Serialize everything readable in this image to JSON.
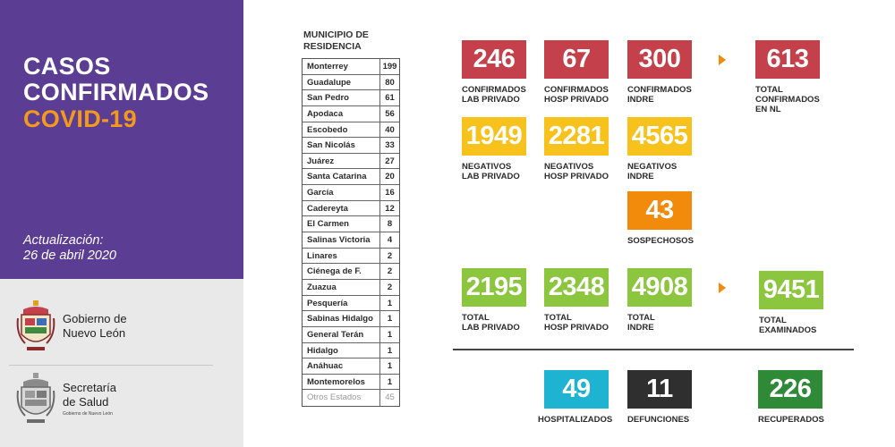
{
  "header": {
    "title_line1": "CASOS",
    "title_line2": "CONFIRMADOS",
    "title_line3": "COVID-19",
    "update_label": "Actualización:",
    "update_date": "26 de abril 2020"
  },
  "logos": {
    "gov_line1": "Gobierno de",
    "gov_line2": "Nuevo León",
    "salud_line1": "Secretaría",
    "salud_line2": "de Salud",
    "salud_sub": "Gobierno de Nuevo León"
  },
  "municipios": {
    "header_line1": "MUNICIPIO DE",
    "header_line2": "RESIDENCIA",
    "rows": [
      {
        "name": "Monterrey",
        "count": "199"
      },
      {
        "name": "Guadalupe",
        "count": "80"
      },
      {
        "name": "San Pedro",
        "count": "61"
      },
      {
        "name": "Apodaca",
        "count": "56"
      },
      {
        "name": "Escobedo",
        "count": "40"
      },
      {
        "name": "San Nicolás",
        "count": "33"
      },
      {
        "name": "Juárez",
        "count": "27"
      },
      {
        "name": "Santa Catarina",
        "count": "20"
      },
      {
        "name": "García",
        "count": "16"
      },
      {
        "name": "Cadereyta",
        "count": "12"
      },
      {
        "name": "El Carmen",
        "count": "8"
      },
      {
        "name": "Salinas Victoria",
        "count": "4"
      },
      {
        "name": "Linares",
        "count": "2"
      },
      {
        "name": "Ciénega de F.",
        "count": "2"
      },
      {
        "name": "Zuazua",
        "count": "2"
      },
      {
        "name": "Pesquería",
        "count": "1"
      },
      {
        "name": "Sabinas Hidalgo",
        "count": "1"
      },
      {
        "name": "General Terán",
        "count": "1"
      },
      {
        "name": "Hidalgo",
        "count": "1"
      },
      {
        "name": "Anáhuac",
        "count": "1"
      },
      {
        "name": "Montemorelos",
        "count": "1"
      },
      {
        "name": "Otros Estados",
        "count": "45"
      }
    ]
  },
  "stats": {
    "conf_lab": {
      "value": "246",
      "label1": "CONFIRMADOS",
      "label2": "LAB PRIVADO"
    },
    "conf_hosp": {
      "value": "67",
      "label1": "CONFIRMADOS",
      "label2": "HOSP PRIVADO"
    },
    "conf_indre": {
      "value": "300",
      "label1": "CONFIRMADOS",
      "label2": "INDRE"
    },
    "conf_total": {
      "value": "613",
      "label1": "TOTAL",
      "label2": "CONFIRMADOS",
      "label3": "EN NL"
    },
    "neg_lab": {
      "value": "1949",
      "label1": "NEGATIVOS",
      "label2": "LAB PRIVADO"
    },
    "neg_hosp": {
      "value": "2281",
      "label1": "NEGATIVOS",
      "label2": "HOSP PRIVADO"
    },
    "neg_indre": {
      "value": "4565",
      "label1": "NEGATIVOS",
      "label2": "INDRE"
    },
    "sospechosos": {
      "value": "43",
      "label1": "SOSPECHOSOS"
    },
    "tot_lab": {
      "value": "2195",
      "label1": "TOTAL",
      "label2": "LAB PRIVADO"
    },
    "tot_hosp": {
      "value": "2348",
      "label1": "TOTAL",
      "label2": "HOSP PRIVADO"
    },
    "tot_indre": {
      "value": "4908",
      "label1": "TOTAL",
      "label2": "INDRE"
    },
    "tot_examinados": {
      "value": "9451",
      "label1": "TOTAL",
      "label2": "EXAMINADOS"
    },
    "hospitalizados": {
      "value": "49",
      "label1": "HOSPITALIZADOS"
    },
    "defunciones": {
      "value": "11",
      "label1": "DEFUNCIONES"
    },
    "recuperados": {
      "value": "226",
      "label1": "RECUPERADOS"
    }
  },
  "colors": {
    "purple": "#5c3d94",
    "orange": "#f39a1d",
    "red": "#c4404b",
    "yellow": "#f7c21c",
    "green": "#8cc63f",
    "blue": "#1eb3d1",
    "dark": "#2f2f2f",
    "dark_green": "#2f8a38"
  }
}
